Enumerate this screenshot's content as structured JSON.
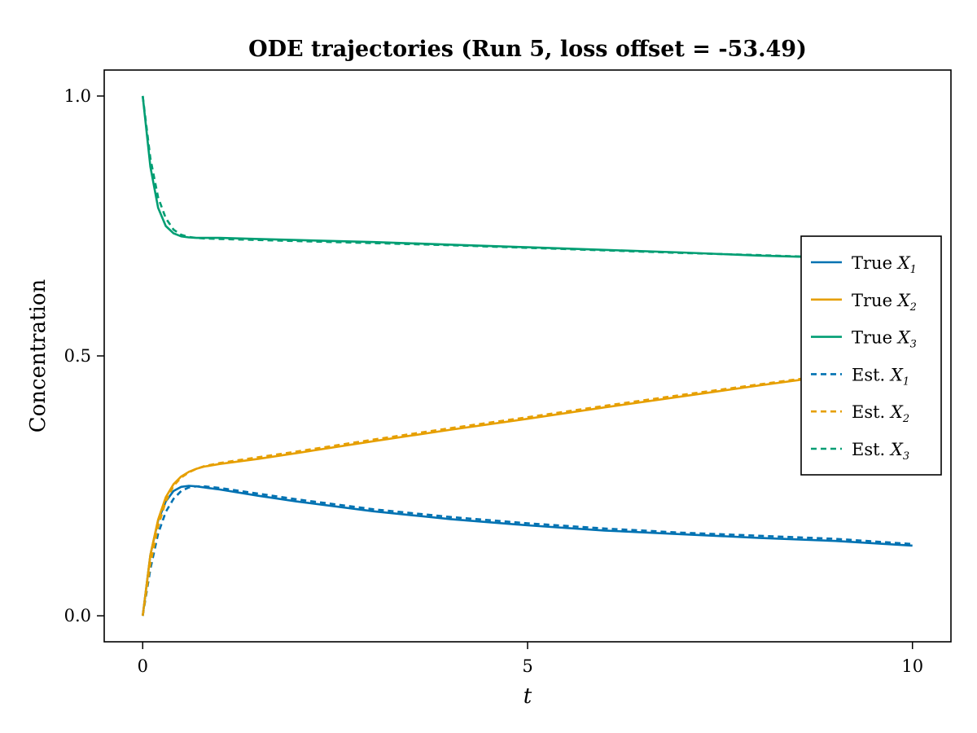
{
  "chart_data": {
    "type": "line",
    "title": "ODE trajectories (Run 5, loss offset = -53.49)",
    "xlabel": "t",
    "ylabel": "Concentration",
    "xlim": [
      -0.5,
      10.5
    ],
    "ylim": [
      -0.05,
      1.05
    ],
    "xticks": [
      0,
      5,
      10
    ],
    "xtick_labels": [
      "0",
      "5",
      "10"
    ],
    "yticks": [
      0.0,
      0.5,
      1.0
    ],
    "ytick_labels": [
      "0.0",
      "0.5",
      "1.0"
    ],
    "grid": false,
    "legend_position": "right",
    "x": [
      0,
      0.1,
      0.2,
      0.3,
      0.4,
      0.5,
      0.6,
      0.7,
      0.8,
      1.0,
      1.5,
      2,
      3,
      4,
      5,
      6,
      7,
      8,
      9,
      10
    ],
    "series": [
      {
        "name": "True X1",
        "label": "True ",
        "symbol": "X",
        "subscript": "1",
        "color": "#0072B2",
        "dash": "solid",
        "values": [
          0.0,
          0.117,
          0.183,
          0.22,
          0.24,
          0.248,
          0.25,
          0.249,
          0.247,
          0.243,
          0.231,
          0.22,
          0.201,
          0.186,
          0.174,
          0.164,
          0.157,
          0.15,
          0.144,
          0.135
        ]
      },
      {
        "name": "True X2",
        "label": "True ",
        "symbol": "X",
        "subscript": "2",
        "color": "#E69F00",
        "dash": "solid",
        "values": [
          0.0,
          0.117,
          0.185,
          0.228,
          0.253,
          0.268,
          0.277,
          0.283,
          0.287,
          0.292,
          0.302,
          0.313,
          0.336,
          0.358,
          0.379,
          0.401,
          0.422,
          0.443,
          0.463,
          0.486
        ]
      },
      {
        "name": "True X3",
        "label": "True ",
        "symbol": "X",
        "subscript": "3",
        "color": "#009E73",
        "dash": "solid",
        "values": [
          1.0,
          0.864,
          0.785,
          0.75,
          0.736,
          0.73,
          0.728,
          0.727,
          0.727,
          0.727,
          0.725,
          0.723,
          0.719,
          0.714,
          0.709,
          0.704,
          0.699,
          0.693,
          0.689,
          0.681
        ]
      },
      {
        "name": "Est. X1",
        "label": "Est. ",
        "symbol": "X",
        "subscript": "1",
        "color": "#0072B2",
        "dash": "dashed",
        "values": [
          0.0,
          0.09,
          0.158,
          0.2,
          0.225,
          0.24,
          0.247,
          0.249,
          0.249,
          0.246,
          0.235,
          0.224,
          0.205,
          0.19,
          0.178,
          0.168,
          0.16,
          0.154,
          0.148,
          0.138
        ]
      },
      {
        "name": "Est. X2",
        "label": "Est. ",
        "symbol": "X",
        "subscript": "2",
        "color": "#E69F00",
        "dash": "dashed",
        "values": [
          0.0,
          0.1,
          0.172,
          0.22,
          0.25,
          0.266,
          0.276,
          0.283,
          0.288,
          0.294,
          0.305,
          0.316,
          0.339,
          0.361,
          0.382,
          0.404,
          0.425,
          0.445,
          0.465,
          0.488
        ]
      },
      {
        "name": "Est. X3",
        "label": "Est. ",
        "symbol": "X",
        "subscript": "3",
        "color": "#009E73",
        "dash": "dashed",
        "values": [
          1.0,
          0.88,
          0.805,
          0.765,
          0.743,
          0.733,
          0.729,
          0.727,
          0.726,
          0.725,
          0.723,
          0.721,
          0.717,
          0.713,
          0.708,
          0.703,
          0.698,
          0.694,
          0.689,
          0.683
        ]
      }
    ]
  }
}
